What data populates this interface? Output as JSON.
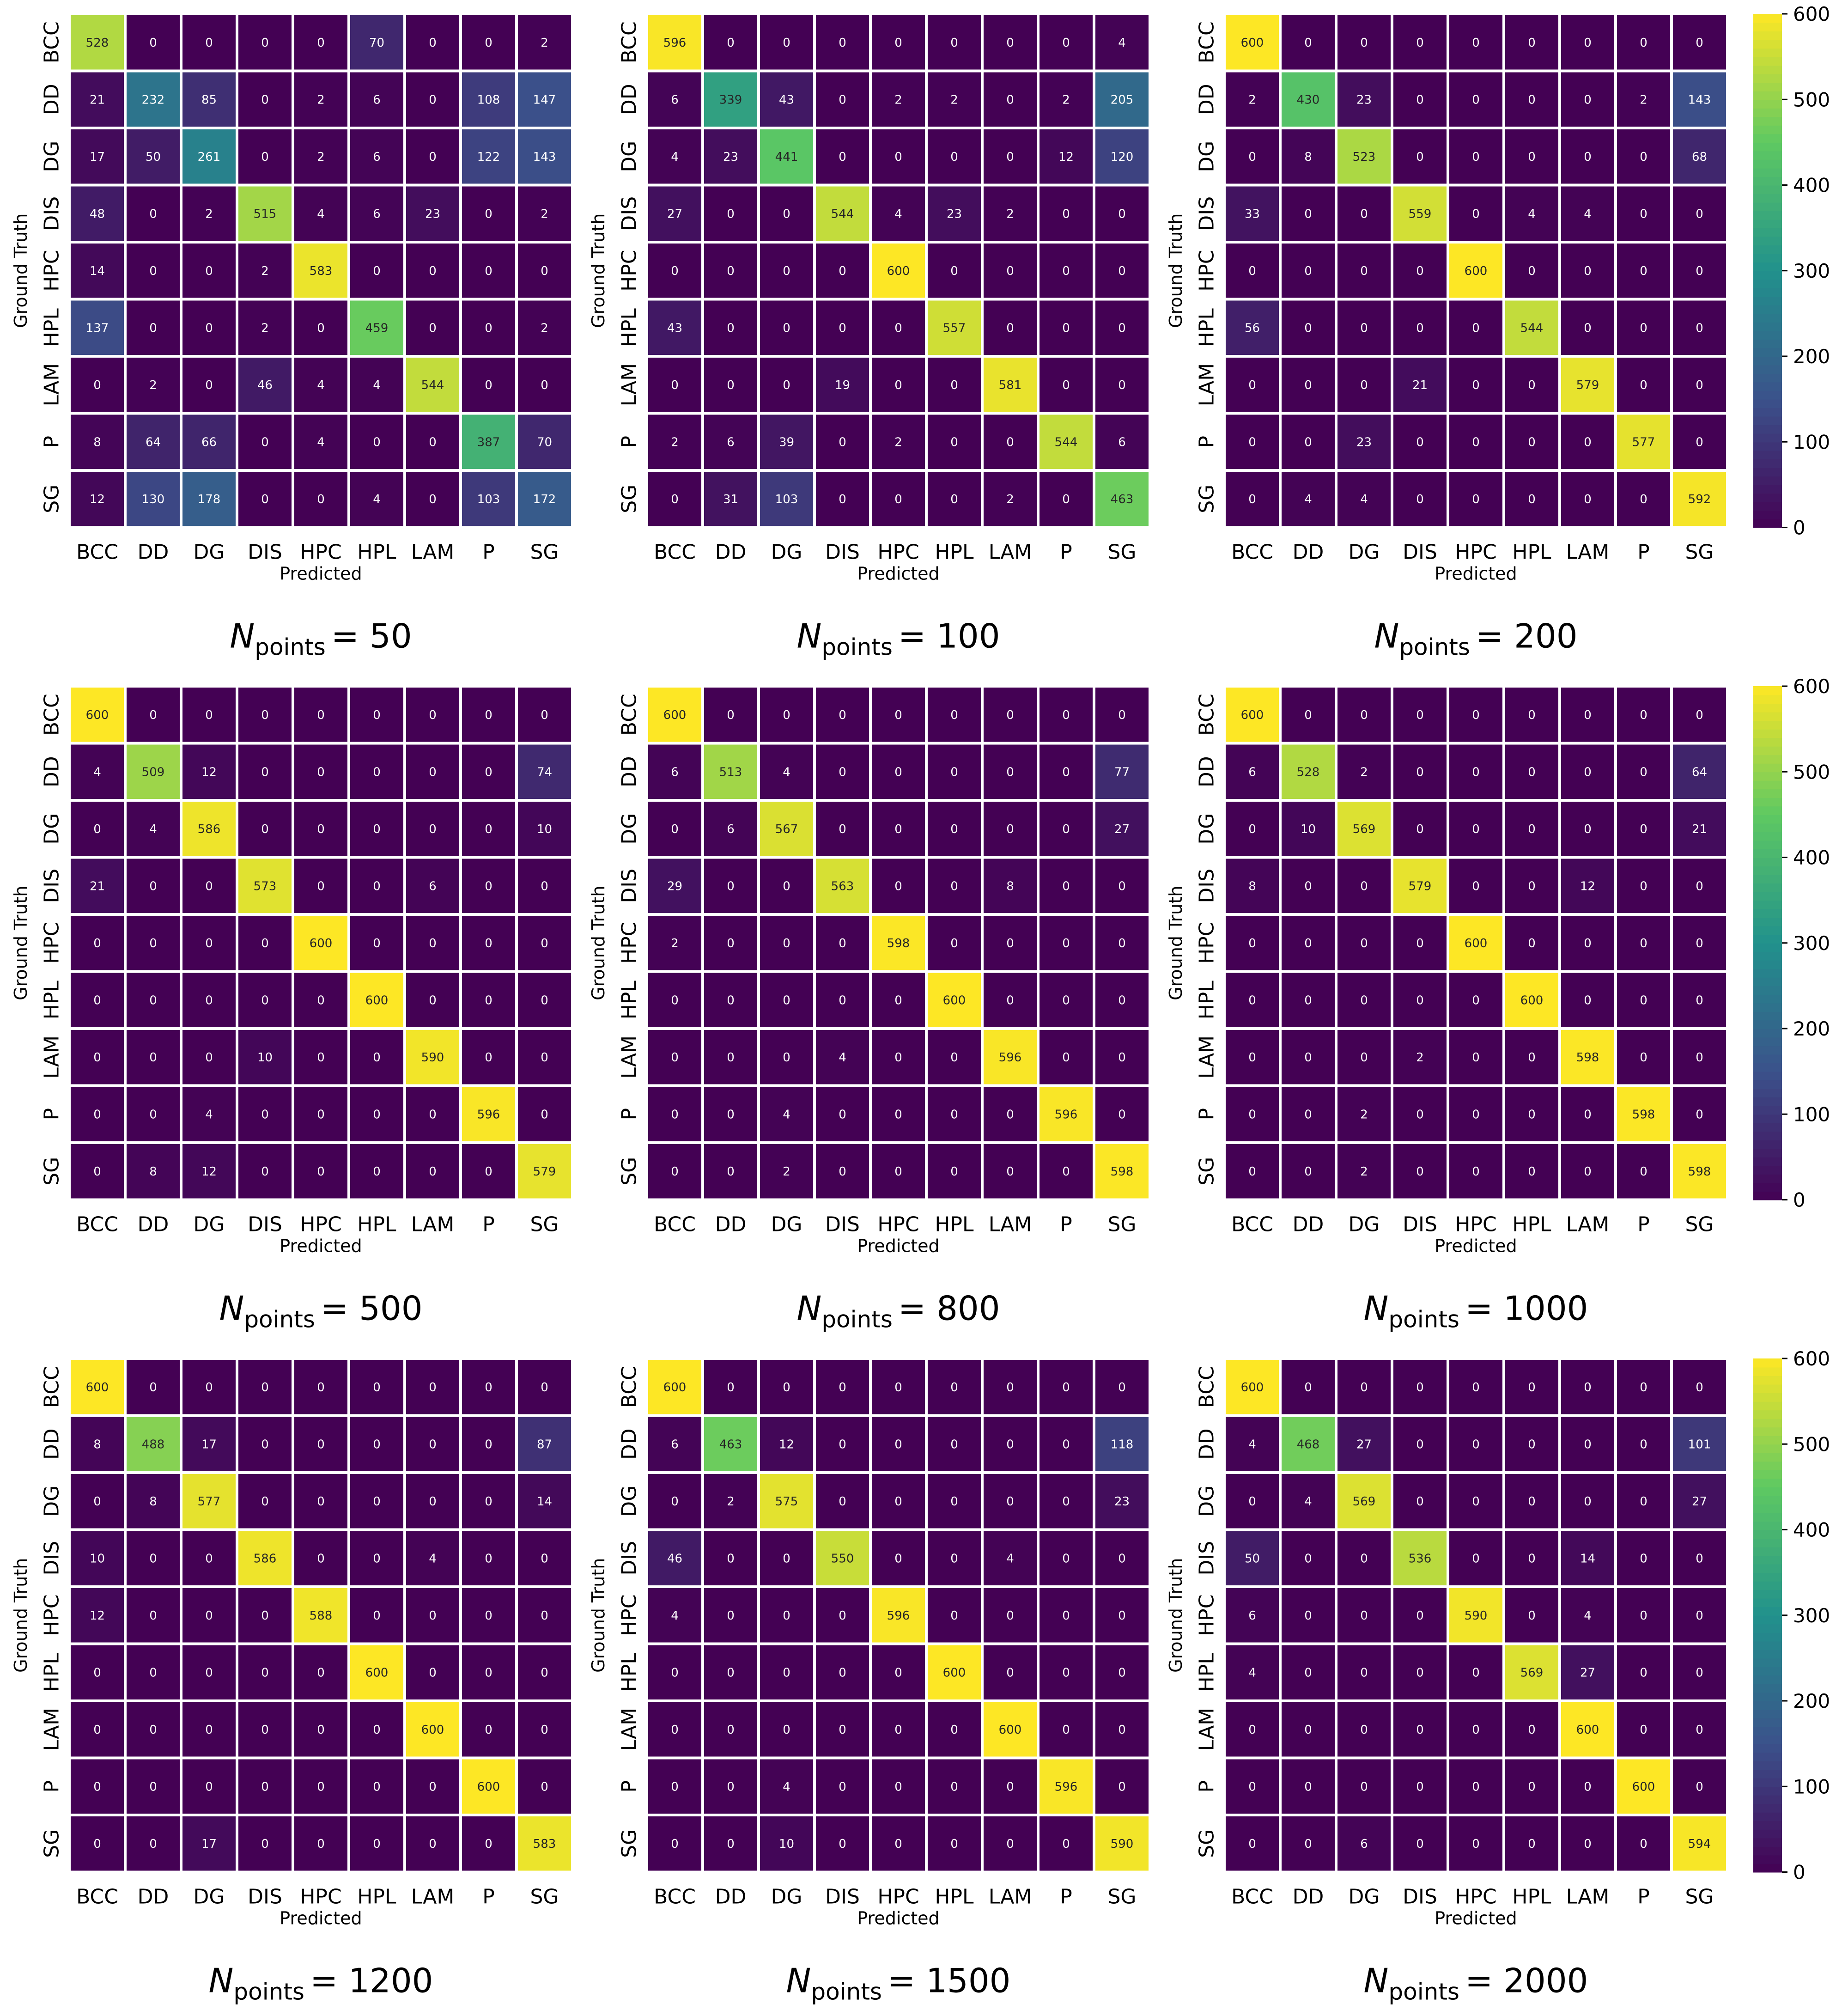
{
  "figure": {
    "colormap": [
      "#440154",
      "#3b528b",
      "#21918c",
      "#5ec962",
      "#fde725"
    ],
    "cell_border_color": "#ffffff"
  },
  "chart_data": [
    {
      "type": "heatmap",
      "title_symbol": "N",
      "title_subscript": "points",
      "title_value": "= 50",
      "xlabel": "Predicted",
      "ylabel": "Ground Truth",
      "x_categories": [
        "BCC",
        "DD",
        "DG",
        "DIS",
        "HPC",
        "HPL",
        "LAM",
        "P",
        "SG"
      ],
      "y_categories": [
        "BCC",
        "DD",
        "DG",
        "DIS",
        "HPC",
        "HPL",
        "LAM",
        "P",
        "SG"
      ],
      "zlim": [
        0,
        600
      ],
      "matrix": [
        [
          528,
          0,
          0,
          0,
          0,
          70,
          0,
          0,
          2
        ],
        [
          21,
          232,
          85,
          0,
          2,
          6,
          0,
          108,
          147
        ],
        [
          17,
          50,
          261,
          0,
          2,
          6,
          0,
          122,
          143
        ],
        [
          48,
          0,
          2,
          515,
          4,
          6,
          23,
          0,
          2
        ],
        [
          14,
          0,
          0,
          2,
          583,
          0,
          0,
          0,
          0
        ],
        [
          137,
          0,
          0,
          2,
          0,
          459,
          0,
          0,
          2
        ],
        [
          0,
          2,
          0,
          46,
          4,
          4,
          544,
          0,
          0
        ],
        [
          8,
          64,
          66,
          0,
          4,
          0,
          0,
          387,
          70
        ],
        [
          12,
          130,
          178,
          0,
          0,
          4,
          0,
          103,
          172
        ]
      ]
    },
    {
      "type": "heatmap",
      "title_symbol": "N",
      "title_subscript": "points",
      "title_value": "= 100",
      "xlabel": "Predicted",
      "ylabel": "Ground Truth",
      "x_categories": [
        "BCC",
        "DD",
        "DG",
        "DIS",
        "HPC",
        "HPL",
        "LAM",
        "P",
        "SG"
      ],
      "y_categories": [
        "BCC",
        "DD",
        "DG",
        "DIS",
        "HPC",
        "HPL",
        "LAM",
        "P",
        "SG"
      ],
      "zlim": [
        0,
        600
      ],
      "matrix": [
        [
          596,
          0,
          0,
          0,
          0,
          0,
          0,
          0,
          4
        ],
        [
          6,
          339,
          43,
          0,
          2,
          2,
          0,
          2,
          205
        ],
        [
          4,
          23,
          441,
          0,
          0,
          0,
          0,
          12,
          120
        ],
        [
          27,
          0,
          0,
          544,
          4,
          23,
          2,
          0,
          0
        ],
        [
          0,
          0,
          0,
          0,
          600,
          0,
          0,
          0,
          0
        ],
        [
          43,
          0,
          0,
          0,
          0,
          557,
          0,
          0,
          0
        ],
        [
          0,
          0,
          0,
          19,
          0,
          0,
          581,
          0,
          0
        ],
        [
          2,
          6,
          39,
          0,
          2,
          0,
          0,
          544,
          6
        ],
        [
          0,
          31,
          103,
          0,
          0,
          0,
          2,
          0,
          463
        ]
      ]
    },
    {
      "type": "heatmap",
      "title_symbol": "N",
      "title_subscript": "points",
      "title_value": "= 200",
      "xlabel": "Predicted",
      "ylabel": "Ground Truth",
      "x_categories": [
        "BCC",
        "DD",
        "DG",
        "DIS",
        "HPC",
        "HPL",
        "LAM",
        "P",
        "SG"
      ],
      "y_categories": [
        "BCC",
        "DD",
        "DG",
        "DIS",
        "HPC",
        "HPL",
        "LAM",
        "P",
        "SG"
      ],
      "zlim": [
        0,
        600
      ],
      "colorbar_ticks": [
        0,
        100,
        200,
        300,
        400,
        500,
        600
      ],
      "matrix": [
        [
          600,
          0,
          0,
          0,
          0,
          0,
          0,
          0,
          0
        ],
        [
          2,
          430,
          23,
          0,
          0,
          0,
          0,
          2,
          143
        ],
        [
          0,
          8,
          523,
          0,
          0,
          0,
          0,
          0,
          68
        ],
        [
          33,
          0,
          0,
          559,
          0,
          4,
          4,
          0,
          0
        ],
        [
          0,
          0,
          0,
          0,
          600,
          0,
          0,
          0,
          0
        ],
        [
          56,
          0,
          0,
          0,
          0,
          544,
          0,
          0,
          0
        ],
        [
          0,
          0,
          0,
          21,
          0,
          0,
          579,
          0,
          0
        ],
        [
          0,
          0,
          23,
          0,
          0,
          0,
          0,
          577,
          0
        ],
        [
          0,
          4,
          4,
          0,
          0,
          0,
          0,
          0,
          592
        ]
      ]
    },
    {
      "type": "heatmap",
      "title_symbol": "N",
      "title_subscript": "points",
      "title_value": "= 500",
      "xlabel": "Predicted",
      "ylabel": "Ground Truth",
      "x_categories": [
        "BCC",
        "DD",
        "DG",
        "DIS",
        "HPC",
        "HPL",
        "LAM",
        "P",
        "SG"
      ],
      "y_categories": [
        "BCC",
        "DD",
        "DG",
        "DIS",
        "HPC",
        "HPL",
        "LAM",
        "P",
        "SG"
      ],
      "zlim": [
        0,
        600
      ],
      "matrix": [
        [
          600,
          0,
          0,
          0,
          0,
          0,
          0,
          0,
          0
        ],
        [
          4,
          509,
          12,
          0,
          0,
          0,
          0,
          0,
          74
        ],
        [
          0,
          4,
          586,
          0,
          0,
          0,
          0,
          0,
          10
        ],
        [
          21,
          0,
          0,
          573,
          0,
          0,
          6,
          0,
          0
        ],
        [
          0,
          0,
          0,
          0,
          600,
          0,
          0,
          0,
          0
        ],
        [
          0,
          0,
          0,
          0,
          0,
          600,
          0,
          0,
          0
        ],
        [
          0,
          0,
          0,
          10,
          0,
          0,
          590,
          0,
          0
        ],
        [
          0,
          0,
          4,
          0,
          0,
          0,
          0,
          596,
          0
        ],
        [
          0,
          8,
          12,
          0,
          0,
          0,
          0,
          0,
          579
        ]
      ]
    },
    {
      "type": "heatmap",
      "title_symbol": "N",
      "title_subscript": "points",
      "title_value": "= 800",
      "xlabel": "Predicted",
      "ylabel": "Ground Truth",
      "x_categories": [
        "BCC",
        "DD",
        "DG",
        "DIS",
        "HPC",
        "HPL",
        "LAM",
        "P",
        "SG"
      ],
      "y_categories": [
        "BCC",
        "DD",
        "DG",
        "DIS",
        "HPC",
        "HPL",
        "LAM",
        "P",
        "SG"
      ],
      "zlim": [
        0,
        600
      ],
      "matrix": [
        [
          600,
          0,
          0,
          0,
          0,
          0,
          0,
          0,
          0
        ],
        [
          6,
          513,
          4,
          0,
          0,
          0,
          0,
          0,
          77
        ],
        [
          0,
          6,
          567,
          0,
          0,
          0,
          0,
          0,
          27
        ],
        [
          29,
          0,
          0,
          563,
          0,
          0,
          8,
          0,
          0
        ],
        [
          2,
          0,
          0,
          0,
          598,
          0,
          0,
          0,
          0
        ],
        [
          0,
          0,
          0,
          0,
          0,
          600,
          0,
          0,
          0
        ],
        [
          0,
          0,
          0,
          4,
          0,
          0,
          596,
          0,
          0
        ],
        [
          0,
          0,
          4,
          0,
          0,
          0,
          0,
          596,
          0
        ],
        [
          0,
          0,
          2,
          0,
          0,
          0,
          0,
          0,
          598
        ]
      ]
    },
    {
      "type": "heatmap",
      "title_symbol": "N",
      "title_subscript": "points",
      "title_value": "= 1000",
      "xlabel": "Predicted",
      "ylabel": "Ground Truth",
      "x_categories": [
        "BCC",
        "DD",
        "DG",
        "DIS",
        "HPC",
        "HPL",
        "LAM",
        "P",
        "SG"
      ],
      "y_categories": [
        "BCC",
        "DD",
        "DG",
        "DIS",
        "HPC",
        "HPL",
        "LAM",
        "P",
        "SG"
      ],
      "zlim": [
        0,
        600
      ],
      "colorbar_ticks": [
        0,
        100,
        200,
        300,
        400,
        500,
        600
      ],
      "matrix": [
        [
          600,
          0,
          0,
          0,
          0,
          0,
          0,
          0,
          0
        ],
        [
          6,
          528,
          2,
          0,
          0,
          0,
          0,
          0,
          64
        ],
        [
          0,
          10,
          569,
          0,
          0,
          0,
          0,
          0,
          21
        ],
        [
          8,
          0,
          0,
          579,
          0,
          0,
          12,
          0,
          0
        ],
        [
          0,
          0,
          0,
          0,
          600,
          0,
          0,
          0,
          0
        ],
        [
          0,
          0,
          0,
          0,
          0,
          600,
          0,
          0,
          0
        ],
        [
          0,
          0,
          0,
          2,
          0,
          0,
          598,
          0,
          0
        ],
        [
          0,
          0,
          2,
          0,
          0,
          0,
          0,
          598,
          0
        ],
        [
          0,
          0,
          2,
          0,
          0,
          0,
          0,
          0,
          598
        ]
      ]
    },
    {
      "type": "heatmap",
      "title_symbol": "N",
      "title_subscript": "points",
      "title_value": "= 1200",
      "xlabel": "Predicted",
      "ylabel": "Ground Truth",
      "x_categories": [
        "BCC",
        "DD",
        "DG",
        "DIS",
        "HPC",
        "HPL",
        "LAM",
        "P",
        "SG"
      ],
      "y_categories": [
        "BCC",
        "DD",
        "DG",
        "DIS",
        "HPC",
        "HPL",
        "LAM",
        "P",
        "SG"
      ],
      "zlim": [
        0,
        600
      ],
      "matrix": [
        [
          600,
          0,
          0,
          0,
          0,
          0,
          0,
          0,
          0
        ],
        [
          8,
          488,
          17,
          0,
          0,
          0,
          0,
          0,
          87
        ],
        [
          0,
          8,
          577,
          0,
          0,
          0,
          0,
          0,
          14
        ],
        [
          10,
          0,
          0,
          586,
          0,
          0,
          4,
          0,
          0
        ],
        [
          12,
          0,
          0,
          0,
          588,
          0,
          0,
          0,
          0
        ],
        [
          0,
          0,
          0,
          0,
          0,
          600,
          0,
          0,
          0
        ],
        [
          0,
          0,
          0,
          0,
          0,
          0,
          600,
          0,
          0
        ],
        [
          0,
          0,
          0,
          0,
          0,
          0,
          0,
          600,
          0
        ],
        [
          0,
          0,
          17,
          0,
          0,
          0,
          0,
          0,
          583
        ]
      ]
    },
    {
      "type": "heatmap",
      "title_symbol": "N",
      "title_subscript": "points",
      "title_value": "= 1500",
      "xlabel": "Predicted",
      "ylabel": "Ground Truth",
      "x_categories": [
        "BCC",
        "DD",
        "DG",
        "DIS",
        "HPC",
        "HPL",
        "LAM",
        "P",
        "SG"
      ],
      "y_categories": [
        "BCC",
        "DD",
        "DG",
        "DIS",
        "HPC",
        "HPL",
        "LAM",
        "P",
        "SG"
      ],
      "zlim": [
        0,
        600
      ],
      "matrix": [
        [
          600,
          0,
          0,
          0,
          0,
          0,
          0,
          0,
          0
        ],
        [
          6,
          463,
          12,
          0,
          0,
          0,
          0,
          0,
          118
        ],
        [
          0,
          2,
          575,
          0,
          0,
          0,
          0,
          0,
          23
        ],
        [
          46,
          0,
          0,
          550,
          0,
          0,
          4,
          0,
          0
        ],
        [
          4,
          0,
          0,
          0,
          596,
          0,
          0,
          0,
          0
        ],
        [
          0,
          0,
          0,
          0,
          0,
          600,
          0,
          0,
          0
        ],
        [
          0,
          0,
          0,
          0,
          0,
          0,
          600,
          0,
          0
        ],
        [
          0,
          0,
          4,
          0,
          0,
          0,
          0,
          596,
          0
        ],
        [
          0,
          0,
          10,
          0,
          0,
          0,
          0,
          0,
          590
        ]
      ]
    },
    {
      "type": "heatmap",
      "title_symbol": "N",
      "title_subscript": "points",
      "title_value": "= 2000",
      "xlabel": "Predicted",
      "ylabel": "Ground Truth",
      "x_categories": [
        "BCC",
        "DD",
        "DG",
        "DIS",
        "HPC",
        "HPL",
        "LAM",
        "P",
        "SG"
      ],
      "y_categories": [
        "BCC",
        "DD",
        "DG",
        "DIS",
        "HPC",
        "HPL",
        "LAM",
        "P",
        "SG"
      ],
      "zlim": [
        0,
        600
      ],
      "colorbar_ticks": [
        0,
        100,
        200,
        300,
        400,
        500,
        600
      ],
      "matrix": [
        [
          600,
          0,
          0,
          0,
          0,
          0,
          0,
          0,
          0
        ],
        [
          4,
          468,
          27,
          0,
          0,
          0,
          0,
          0,
          101
        ],
        [
          0,
          4,
          569,
          0,
          0,
          0,
          0,
          0,
          27
        ],
        [
          50,
          0,
          0,
          536,
          0,
          0,
          14,
          0,
          0
        ],
        [
          6,
          0,
          0,
          0,
          590,
          0,
          4,
          0,
          0
        ],
        [
          4,
          0,
          0,
          0,
          0,
          569,
          27,
          0,
          0
        ],
        [
          0,
          0,
          0,
          0,
          0,
          0,
          600,
          0,
          0
        ],
        [
          0,
          0,
          0,
          0,
          0,
          0,
          0,
          600,
          0
        ],
        [
          0,
          0,
          6,
          0,
          0,
          0,
          0,
          0,
          594
        ]
      ]
    }
  ]
}
